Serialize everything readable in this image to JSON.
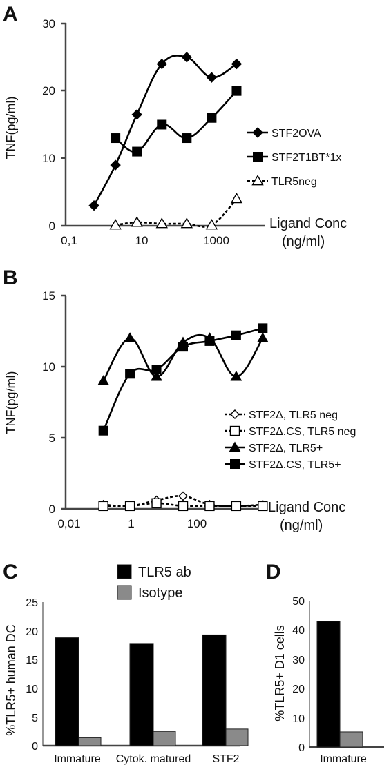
{
  "panels": {
    "A": {
      "letter": "A",
      "ylabel": "TNF(pg/ml)",
      "yticks": [
        "0",
        "10",
        "20",
        "30"
      ],
      "xticks": [
        "0,1",
        "10",
        "1000"
      ],
      "cond_line1": "Ligand Conc",
      "cond_line2": "(ng/ml)"
    },
    "B": {
      "letter": "B",
      "ylabel": "TNF(pg/ml)",
      "yticks": [
        "0",
        "5",
        "10",
        "15"
      ],
      "xticks": [
        "0,01",
        "1",
        "100"
      ],
      "cond_line1": "Ligand Conc",
      "cond_line2": "(ng/ml)"
    },
    "C": {
      "letter": "C",
      "ylabel": "%TLR5+ human DC",
      "yticks": [
        "0",
        "5",
        "10",
        "15",
        "20",
        "25"
      ]
    },
    "D": {
      "letter": "D",
      "ylabel": "%TLR5+ D1 cells",
      "yticks": [
        "0",
        "10",
        "20",
        "30",
        "40",
        "50"
      ]
    }
  },
  "chart_data": [
    {
      "type": "line",
      "panel": "A",
      "ylabel": "TNF(pg/ml)",
      "xlabel": "Ligand Conc (ng/ml)",
      "xscale": "log",
      "xlim": [
        0.1,
        10000
      ],
      "ylim": [
        0,
        30
      ],
      "legend": "right",
      "series": [
        {
          "name": "STF2OVA",
          "marker": "diamond-filled",
          "dash": false,
          "x": [
            0.5,
            2,
            8,
            40,
            200,
            1000,
            5000
          ],
          "y": [
            3,
            9,
            16.5,
            24,
            25,
            22,
            24
          ]
        },
        {
          "name": "STF2T1BT*1x",
          "marker": "square-filled",
          "dash": false,
          "x": [
            2,
            8,
            40,
            200,
            1000,
            5000
          ],
          "y": [
            13,
            11,
            15,
            13,
            16,
            20
          ]
        },
        {
          "name": "TLR5neg",
          "marker": "triangle-open",
          "dash": true,
          "x": [
            2,
            8,
            40,
            200,
            1000,
            5000
          ],
          "y": [
            0.1,
            0.5,
            0.3,
            0.3,
            0.1,
            4
          ]
        }
      ]
    },
    {
      "type": "line",
      "panel": "B",
      "ylabel": "TNF(pg/ml)",
      "xlabel": "Ligand Conc (ng/ml)",
      "xscale": "log",
      "xlim": [
        0.01,
        1000
      ],
      "ylim": [
        0,
        15
      ],
      "legend": "right",
      "series": [
        {
          "name": "STF2Δ, TLR5 neg",
          "marker": "diamond-open",
          "dash": true,
          "x": [
            0.08,
            0.4,
            2,
            10,
            50,
            250,
            1250
          ],
          "y": [
            0.3,
            0.2,
            0.6,
            0.9,
            0.3,
            0.2,
            0.3
          ]
        },
        {
          "name": "STF2Δ.CS, TLR5 neg",
          "marker": "square-open",
          "dash": true,
          "x": [
            0.08,
            0.4,
            2,
            10,
            50,
            250,
            1250
          ],
          "y": [
            0.2,
            0.2,
            0.4,
            0.2,
            0.2,
            0.2,
            0.2
          ]
        },
        {
          "name": "STF2Δ, TLR5+",
          "marker": "triangle-filled",
          "dash": false,
          "x": [
            0.08,
            0.4,
            2,
            10,
            50,
            250,
            1250
          ],
          "y": [
            9,
            12,
            9.3,
            11.7,
            12,
            9.3,
            12
          ]
        },
        {
          "name": "STF2Δ.CS, TLR5+",
          "marker": "square-filled",
          "dash": false,
          "x": [
            0.08,
            0.4,
            2,
            10,
            50,
            250,
            1250
          ],
          "y": [
            5.5,
            9.5,
            9.8,
            11.4,
            11.8,
            12.2,
            12.7
          ]
        }
      ]
    },
    {
      "type": "bar",
      "panel": "C",
      "ylabel": "%TLR5+ human DC",
      "ylim": [
        0,
        25
      ],
      "legend": "top",
      "categories": [
        "Immature",
        "Cytok. matured",
        "STF2"
      ],
      "series": [
        {
          "name": "TLR5 ab",
          "color": "#000000",
          "values": [
            18.8,
            17.8,
            19.3
          ]
        },
        {
          "name": "Isotype",
          "color": "#8a8a8a",
          "values": [
            1.4,
            2.5,
            2.9
          ]
        }
      ]
    },
    {
      "type": "bar",
      "panel": "D",
      "ylabel": "%TLR5+ D1 cells",
      "ylim": [
        0,
        50
      ],
      "categories": [
        "Immature"
      ],
      "series": [
        {
          "name": "TLR5 ab",
          "color": "#000000",
          "values": [
            43
          ]
        },
        {
          "name": "Isotype",
          "color": "#8a8a8a",
          "values": [
            5.2
          ]
        }
      ]
    }
  ]
}
